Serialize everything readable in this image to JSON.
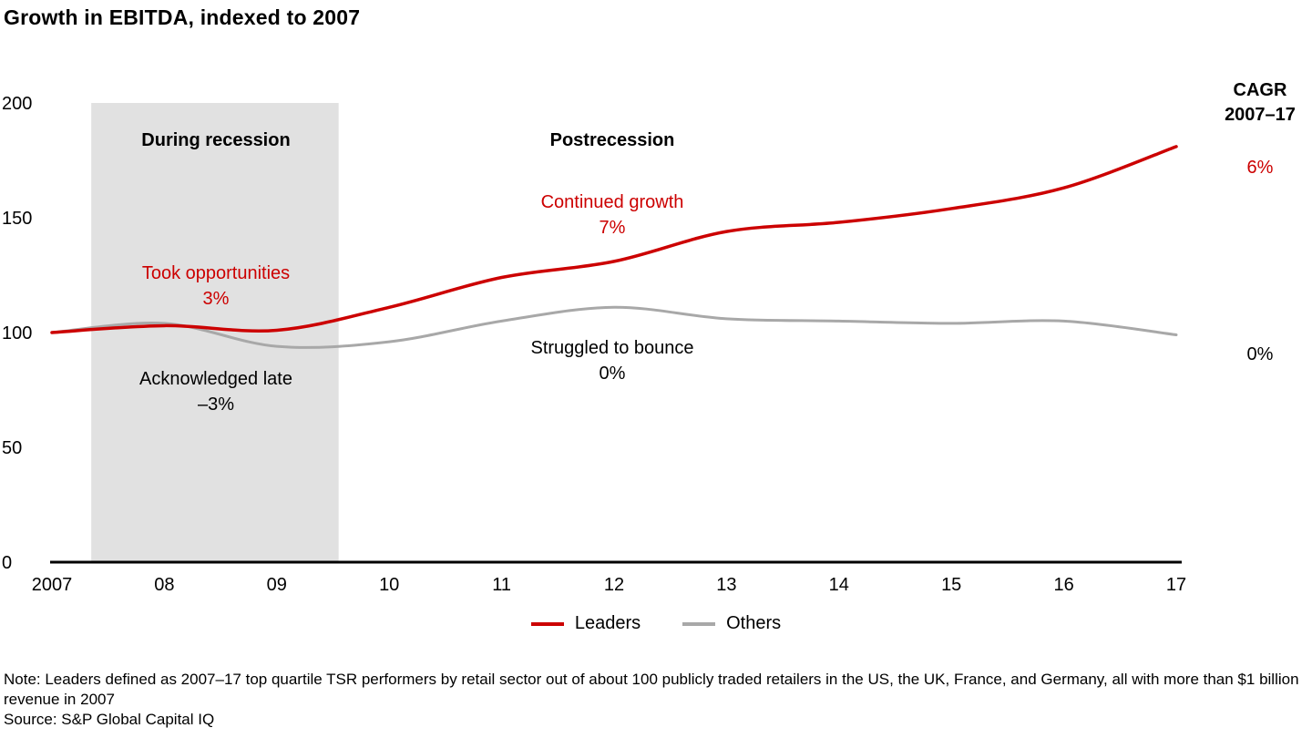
{
  "title": "Growth in EBITDA, indexed to 2007",
  "colors": {
    "leaders": "#cc0000",
    "others": "#a8a8a8",
    "band": "#e1e1e1",
    "axis": "#000000"
  },
  "chart_data": {
    "type": "line",
    "title": "Growth in EBITDA, indexed to 2007",
    "xlabel": "",
    "ylabel": "",
    "ylim": [
      0,
      200
    ],
    "y_ticks": [
      0,
      50,
      100,
      150,
      200
    ],
    "grid": false,
    "legend_position": "bottom",
    "x": [
      2007,
      2008,
      2009,
      2010,
      2011,
      2012,
      2013,
      2014,
      2015,
      2016,
      2017
    ],
    "x_tick_labels": [
      "2007",
      "08",
      "09",
      "10",
      "11",
      "12",
      "13",
      "14",
      "15",
      "16",
      "17"
    ],
    "series": [
      {
        "name": "Leaders",
        "color": "#cc0000",
        "cagr_2007_17": "6%",
        "values": [
          100,
          103,
          101,
          111,
          124,
          131,
          144,
          148,
          154,
          163,
          181
        ]
      },
      {
        "name": "Others",
        "color": "#a8a8a8",
        "cagr_2007_17": "0%",
        "values": [
          100,
          104,
          94,
          96,
          105,
          111,
          106,
          105,
          104,
          105,
          99
        ]
      }
    ],
    "recession_band": {
      "from": 2007.35,
      "to": 2009.55,
      "label": "During recession"
    }
  },
  "annotations": {
    "during_recession": "During recession",
    "postrecession": "Postrecession",
    "continued_growth": {
      "label": "Continued growth",
      "value": "7%"
    },
    "took_opportunities": {
      "label": "Took opportunities",
      "value": "3%"
    },
    "acknowledged_late": {
      "label": "Acknowledged late",
      "value": "–3%"
    },
    "struggled_to_bounce": {
      "label": "Struggled to bounce",
      "value": "0%"
    },
    "cagr": {
      "line1": "CAGR",
      "line2": "2007–17",
      "leaders": "6%",
      "others": "0%"
    }
  },
  "notes": {
    "note": "Note: Leaders defined as 2007–17 top quartile TSR performers by retail sector out of about 100 publicly traded retailers in the US, the UK, France, and Germany, all with more than $1 billion revenue in 2007",
    "source": "Source: S&P Global Capital IQ"
  }
}
